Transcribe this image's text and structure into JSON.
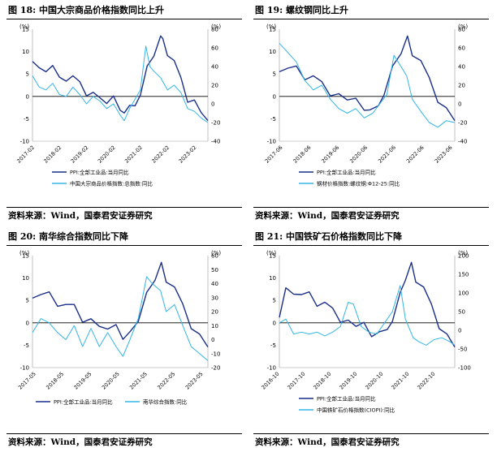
{
  "source_label": "资料来源：Wind，国泰君安证券研究",
  "colors": {
    "ppi": "#1a2f8a",
    "other": "#33b5e5",
    "zero": "#000000",
    "axis": "#999999"
  },
  "chart_data": [
    {
      "type": "line",
      "title": "图 18: 中国大宗商品价格指数同比上升",
      "left_unit": "(%)",
      "right_unit": "(%)",
      "ylim_left": [
        -10,
        15
      ],
      "yticks_left": [
        15,
        10,
        5,
        0,
        -5,
        -10
      ],
      "ylim_right": [
        -40,
        80
      ],
      "yticks_right": [
        80,
        60,
        40,
        20,
        0,
        -20,
        -40
      ],
      "xtick_labels": [
        "2017-02",
        "2018-02",
        "2019-02",
        "2020-02",
        "2021-02",
        "2022-02",
        "2023-02"
      ],
      "x_start": 2017.0,
      "x_end": 2023.5,
      "xtick_positions": [
        2017.08,
        2018.08,
        2019.08,
        2020.08,
        2021.08,
        2022.08,
        2023.08
      ],
      "series": [
        {
          "name": "PPI:全部工业品:当月同比",
          "axis": "left",
          "color": "ppi",
          "x": [
            2017.0,
            2017.25,
            2017.5,
            2017.75,
            2018.0,
            2018.25,
            2018.5,
            2018.75,
            2019.0,
            2019.25,
            2019.5,
            2019.75,
            2020.0,
            2020.25,
            2020.4,
            2020.6,
            2020.8,
            2021.0,
            2021.25,
            2021.5,
            2021.75,
            2021.83,
            2022.0,
            2022.25,
            2022.5,
            2022.75,
            2023.0,
            2023.25,
            2023.5
          ],
          "y": [
            7.8,
            6.4,
            5.5,
            6.9,
            4.3,
            3.4,
            4.6,
            3.3,
            0.1,
            0.9,
            -0.3,
            -1.6,
            0.1,
            -3.1,
            -3.7,
            -2.0,
            -2.1,
            0.3,
            6.8,
            9.0,
            13.5,
            12.9,
            9.1,
            8.0,
            4.2,
            -1.3,
            -0.8,
            -3.6,
            -5.4
          ]
        },
        {
          "name": "中国大宗商品价格指数:总指数:同比",
          "axis": "right",
          "color": "other",
          "x": [
            2017.0,
            2017.25,
            2017.5,
            2017.75,
            2018.0,
            2018.25,
            2018.5,
            2018.75,
            2019.0,
            2019.25,
            2019.5,
            2019.75,
            2020.0,
            2020.25,
            2020.4,
            2020.6,
            2020.8,
            2021.0,
            2021.2,
            2021.35,
            2021.5,
            2021.75,
            2022.0,
            2022.25,
            2022.5,
            2022.75,
            2023.0,
            2023.25,
            2023.5
          ],
          "y": [
            30,
            18,
            15,
            22,
            10,
            8,
            18,
            10,
            0,
            8,
            3,
            -5,
            0,
            -12,
            -18,
            -5,
            5,
            15,
            62,
            40,
            35,
            28,
            15,
            20,
            12,
            -5,
            -8,
            -15,
            -20
          ]
        }
      ]
    },
    {
      "type": "line",
      "title": "图 19: 螺纹钢同比上升",
      "left_unit": "(%)",
      "right_unit": "(%)",
      "ylim_left": [
        -10,
        15
      ],
      "yticks_left": [
        15,
        10,
        5,
        0,
        -5,
        -10
      ],
      "ylim_right": [
        -40,
        80
      ],
      "yticks_right": [
        80,
        60,
        40,
        20,
        0,
        -20,
        -40
      ],
      "xtick_labels": [
        "2017-06",
        "2018-06",
        "2019-06",
        "2020-06",
        "2021-06",
        "2022-06",
        "2023-06"
      ],
      "x_start": 2017.3,
      "x_end": 2023.5,
      "xtick_positions": [
        2017.42,
        2018.42,
        2019.42,
        2020.42,
        2021.42,
        2022.42,
        2023.42
      ],
      "series": [
        {
          "name": "PPI:全部工业品:当月同比",
          "axis": "left",
          "color": "ppi",
          "x": [
            2017.3,
            2017.6,
            2017.9,
            2018.2,
            2018.5,
            2018.8,
            2019.1,
            2019.4,
            2019.7,
            2020.0,
            2020.3,
            2020.5,
            2020.8,
            2021.0,
            2021.3,
            2021.6,
            2021.83,
            2022.0,
            2022.3,
            2022.6,
            2022.9,
            2023.2,
            2023.5
          ],
          "y": [
            5.5,
            6.3,
            6.8,
            3.7,
            4.6,
            3.3,
            0.1,
            0.6,
            -0.8,
            -0.4,
            -3.1,
            -3.0,
            -2.1,
            0.3,
            6.8,
            9.5,
            13.5,
            9.1,
            8.0,
            4.2,
            -1.3,
            -2.5,
            -5.4
          ]
        },
        {
          "name": "钢材价格指数:螺纹钢:Φ12-25:同比",
          "axis": "right",
          "color": "other",
          "x": [
            2017.3,
            2017.6,
            2017.9,
            2018.2,
            2018.5,
            2018.8,
            2019.1,
            2019.4,
            2019.7,
            2020.0,
            2020.3,
            2020.6,
            2020.9,
            2021.1,
            2021.35,
            2021.6,
            2021.8,
            2022.0,
            2022.3,
            2022.6,
            2022.9,
            2023.2,
            2023.5
          ],
          "y": [
            65,
            55,
            45,
            25,
            15,
            20,
            5,
            -5,
            -10,
            -5,
            -15,
            -10,
            2,
            10,
            52,
            40,
            30,
            5,
            -8,
            -20,
            -25,
            -18,
            -20
          ]
        }
      ]
    },
    {
      "type": "line",
      "title": "图 20: 南华综合指数同比下降",
      "left_unit": "(%)",
      "right_unit": "(%)",
      "ylim_left": [
        -10,
        15
      ],
      "yticks_left": [
        15,
        10,
        5,
        0,
        -5,
        -10
      ],
      "ylim_right": [
        -20,
        60
      ],
      "yticks_right": [
        60,
        50,
        40,
        30,
        20,
        10,
        0,
        -10,
        -20
      ],
      "xtick_labels": [
        "2017-05",
        "2018-05",
        "2019-05",
        "2020-05",
        "2021-05",
        "2022-05",
        "2023-05"
      ],
      "x_start": 2017.2,
      "x_end": 2023.5,
      "xtick_positions": [
        2017.33,
        2018.33,
        2019.33,
        2020.33,
        2021.33,
        2022.33,
        2023.33
      ],
      "series": [
        {
          "name": "PPI:全部工业品:当月同比",
          "axis": "left",
          "color": "ppi",
          "x": [
            2017.2,
            2017.5,
            2017.8,
            2018.1,
            2018.4,
            2018.7,
            2019.0,
            2019.3,
            2019.6,
            2019.9,
            2020.2,
            2020.45,
            2020.7,
            2021.0,
            2021.3,
            2021.6,
            2021.83,
            2022.0,
            2022.3,
            2022.6,
            2022.9,
            2023.2,
            2023.5
          ],
          "y": [
            5.5,
            6.3,
            6.9,
            3.7,
            4.1,
            4.1,
            0.1,
            0.9,
            -0.8,
            -1.4,
            -0.4,
            -3.7,
            -2.0,
            0.3,
            6.8,
            9.5,
            13.5,
            9.1,
            8.0,
            4.2,
            -1.3,
            -2.5,
            -5.4
          ]
        },
        {
          "name": "南华综合指数:同比",
          "axis": "right",
          "color": "other",
          "x": [
            2017.2,
            2017.5,
            2017.8,
            2018.1,
            2018.4,
            2018.7,
            2019.0,
            2019.3,
            2019.6,
            2019.9,
            2020.2,
            2020.45,
            2020.7,
            2021.0,
            2021.3,
            2021.5,
            2021.8,
            2022.0,
            2022.3,
            2022.6,
            2022.9,
            2023.2,
            2023.5
          ],
          "y": [
            5,
            15,
            12,
            5,
            0,
            10,
            -5,
            8,
            -5,
            5,
            -5,
            -12,
            0,
            15,
            45,
            40,
            35,
            20,
            25,
            10,
            -5,
            -10,
            -15
          ]
        }
      ]
    },
    {
      "type": "line",
      "title": "图 21: 中国铁矿石价格指数同比下降",
      "left_unit": "(%)",
      "right_unit": "(%)",
      "ylim_left": [
        -10,
        15
      ],
      "yticks_left": [
        15,
        10,
        5,
        0,
        -5,
        -10
      ],
      "ylim_right": [
        -100,
        200
      ],
      "yticks_right": [
        200,
        150,
        100,
        50,
        0,
        -50,
        -100
      ],
      "xtick_labels": [
        "2016-10",
        "2017-10",
        "2018-10",
        "2019-10",
        "2020-10",
        "2021-10",
        "2022-10"
      ],
      "x_start": 2016.75,
      "x_end": 2023.5,
      "xtick_positions": [
        2016.75,
        2017.75,
        2018.75,
        2019.75,
        2020.75,
        2021.75,
        2022.75
      ],
      "series": [
        {
          "name": "PPI:全部工业品:当月同比",
          "axis": "left",
          "color": "ppi",
          "x": [
            2016.75,
            2017.0,
            2017.3,
            2017.6,
            2017.9,
            2018.2,
            2018.5,
            2018.8,
            2019.1,
            2019.4,
            2019.7,
            2020.0,
            2020.3,
            2020.6,
            2020.9,
            2021.1,
            2021.4,
            2021.6,
            2021.83,
            2022.0,
            2022.3,
            2022.6,
            2022.9,
            2023.2,
            2023.5
          ],
          "y": [
            1.2,
            7.8,
            6.4,
            6.3,
            6.9,
            3.7,
            4.6,
            3.3,
            0.1,
            0.6,
            -0.8,
            0.1,
            -3.1,
            -2.0,
            -1.5,
            0.3,
            6.8,
            9.5,
            13.5,
            9.1,
            8.0,
            4.2,
            -1.3,
            -2.5,
            -5.4
          ]
        },
        {
          "name": "中国铁矿石价格指数(CIOPI):同比",
          "axis": "right",
          "color": "other",
          "x": [
            2016.75,
            2017.0,
            2017.3,
            2017.6,
            2017.9,
            2018.2,
            2018.5,
            2018.8,
            2019.1,
            2019.4,
            2019.6,
            2019.9,
            2020.2,
            2020.5,
            2020.8,
            2021.1,
            2021.4,
            2021.6,
            2021.9,
            2022.1,
            2022.4,
            2022.7,
            2023.0,
            2023.3,
            2023.5
          ],
          "y": [
            20,
            30,
            -10,
            -5,
            -10,
            -5,
            -15,
            -5,
            10,
            75,
            70,
            10,
            -5,
            -10,
            20,
            50,
            120,
            30,
            -20,
            -30,
            -40,
            -25,
            -20,
            -30,
            -40
          ]
        }
      ]
    }
  ]
}
